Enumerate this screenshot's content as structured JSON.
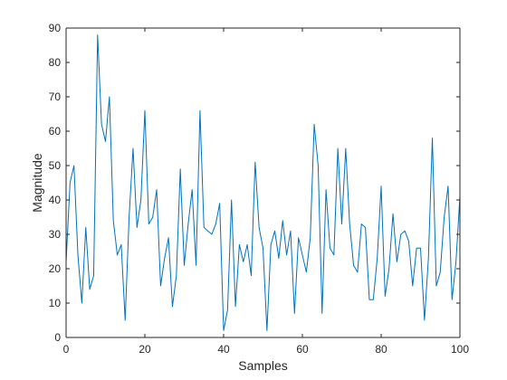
{
  "chart_data": {
    "type": "line",
    "title": "",
    "xlabel": "Samples",
    "ylabel": "Magnitude",
    "xlim": [
      0,
      100
    ],
    "ylim": [
      0,
      90
    ],
    "xticks": [
      0,
      20,
      40,
      60,
      80,
      100
    ],
    "yticks": [
      0,
      10,
      20,
      30,
      40,
      50,
      60,
      70,
      80,
      90
    ],
    "xtick_labels": [
      "0",
      "20",
      "40",
      "60",
      "80",
      "100"
    ],
    "ytick_labels": [
      "0",
      "10",
      "20",
      "30",
      "40",
      "50",
      "60",
      "70",
      "80",
      "90"
    ],
    "grid": false,
    "legend": "none",
    "colors": {
      "line": "#0072BD",
      "axes": "#262626",
      "background": "#ffffff"
    },
    "series": [
      {
        "x": [
          0,
          1,
          2,
          3,
          4,
          5,
          6,
          7,
          8,
          9,
          10,
          11,
          12,
          13,
          14,
          15,
          16,
          17,
          18,
          19,
          20,
          21,
          22,
          23,
          24,
          25,
          26,
          27,
          28,
          29,
          30,
          31,
          32,
          33,
          34,
          35,
          36,
          37,
          38,
          39,
          40,
          41,
          42,
          43,
          44,
          45,
          46,
          47,
          48,
          49,
          50,
          51,
          52,
          53,
          54,
          55,
          56,
          57,
          58,
          59,
          60,
          61,
          62,
          63,
          64,
          65,
          66,
          67,
          68,
          69,
          70,
          71,
          72,
          73,
          74,
          75,
          76,
          77,
          78,
          79,
          80,
          81,
          82,
          83,
          84,
          85,
          86,
          87,
          88,
          89,
          90,
          91,
          92,
          93,
          94,
          95,
          96,
          97,
          98,
          99,
          100
        ],
        "y": [
          22,
          45,
          50,
          24,
          10,
          32,
          14,
          18,
          88,
          62,
          57,
          70,
          34,
          24,
          27,
          5,
          35,
          55,
          32,
          40,
          66,
          33,
          35,
          43,
          15,
          23,
          29,
          9,
          18,
          49,
          21,
          33,
          43,
          21,
          66,
          32,
          31,
          30,
          33,
          39,
          2,
          8,
          40,
          9,
          27,
          22,
          27,
          18,
          51,
          32,
          26,
          2,
          27,
          31,
          23,
          34,
          24,
          31,
          7,
          29,
          24,
          19,
          29,
          62,
          50,
          7,
          43,
          26,
          24,
          55,
          33,
          55,
          33,
          21,
          19,
          33,
          32,
          11,
          11,
          23,
          44,
          12,
          20,
          36,
          22,
          30,
          31,
          28,
          15,
          26,
          26,
          5,
          23,
          58,
          15,
          19,
          35,
          44,
          11,
          22,
          41
        ]
      }
    ]
  }
}
